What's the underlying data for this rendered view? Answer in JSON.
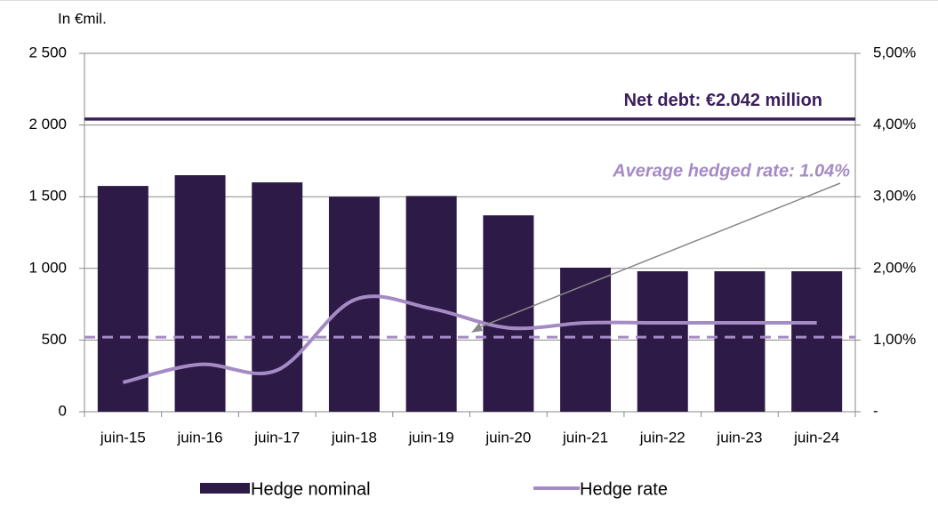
{
  "chart_data": {
    "type": "bar-line",
    "y_label": "In €mil.",
    "categories": [
      "juin-15",
      "juin-16",
      "juin-17",
      "juin-18",
      "juin-19",
      "juin-20",
      "juin-21",
      "juin-22",
      "juin-23",
      "juin-24"
    ],
    "series": [
      {
        "name": "Hedge nominal",
        "type": "bar",
        "color": "#2e1a47",
        "values": [
          1575,
          1650,
          1600,
          1500,
          1505,
          1370,
          1005,
          980,
          980,
          980
        ]
      },
      {
        "name": "Hedge rate",
        "type": "line",
        "axis": "y2",
        "color": "#a58bc4",
        "values": [
          0.41,
          0.66,
          0.58,
          1.56,
          1.44,
          1.17,
          1.24,
          1.24,
          1.24,
          1.24
        ]
      }
    ],
    "reference_lines": [
      {
        "label": "Net debt: €2.042 million",
        "value": 2042,
        "color": "#3b1f5c"
      },
      {
        "label": "Average hedged rate: 1.04%",
        "value": 1.04,
        "axis": "y2",
        "color": "#a58bc4"
      }
    ],
    "ylim": [
      0,
      2500
    ],
    "yticks": [
      0,
      500,
      {
        "value": 1000,
        "label": "1 000"
      },
      {
        "value": 1500,
        "label": "1 500"
      },
      {
        "value": 2000,
        "label": "2 000"
      },
      {
        "value": 2500,
        "label": "2 500"
      }
    ],
    "y2lim": [
      0,
      5
    ],
    "y2ticks": [
      {
        "value": 0,
        "label": "-"
      },
      {
        "value": 1,
        "label": "1,00%"
      },
      {
        "value": 2,
        "label": "2,00%"
      },
      {
        "value": 3,
        "label": "3,00%"
      },
      {
        "value": 4,
        "label": "4,00%"
      },
      {
        "value": 5,
        "label": "5,00%"
      }
    ],
    "grid": true
  }
}
